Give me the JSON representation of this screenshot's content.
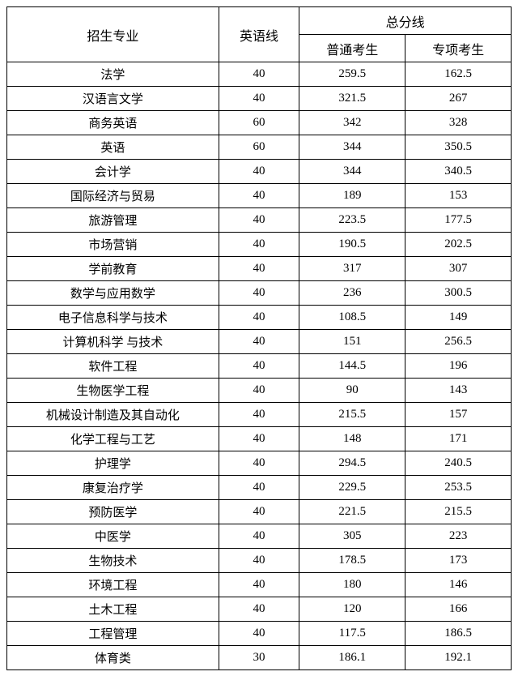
{
  "table": {
    "headers": {
      "major": "招生专业",
      "english": "英语线",
      "total": "总分线",
      "normal": "普通考生",
      "special": "专项考生"
    },
    "rows": [
      {
        "major": "法学",
        "english": "40",
        "normal": "259.5",
        "special": "162.5"
      },
      {
        "major": "汉语言文学",
        "english": "40",
        "normal": "321.5",
        "special": "267"
      },
      {
        "major": "商务英语",
        "english": "60",
        "normal": "342",
        "special": "328"
      },
      {
        "major": "英语",
        "english": "60",
        "normal": "344",
        "special": "350.5"
      },
      {
        "major": "会计学",
        "english": "40",
        "normal": "344",
        "special": "340.5"
      },
      {
        "major": "国际经济与贸易",
        "english": "40",
        "normal": "189",
        "special": "153"
      },
      {
        "major": "旅游管理",
        "english": "40",
        "normal": "223.5",
        "special": "177.5"
      },
      {
        "major": "市场营销",
        "english": "40",
        "normal": "190.5",
        "special": "202.5"
      },
      {
        "major": "学前教育",
        "english": "40",
        "normal": "317",
        "special": "307"
      },
      {
        "major": "数学与应用数学",
        "english": "40",
        "normal": "236",
        "special": "300.5"
      },
      {
        "major": "电子信息科学与技术",
        "english": "40",
        "normal": "108.5",
        "special": "149"
      },
      {
        "major": "计算机科学 与技术",
        "english": "40",
        "normal": "151",
        "special": "256.5"
      },
      {
        "major": "软件工程",
        "english": "40",
        "normal": "144.5",
        "special": "196"
      },
      {
        "major": "生物医学工程",
        "english": "40",
        "normal": "90",
        "special": "143"
      },
      {
        "major": "机械设计制造及其自动化",
        "english": "40",
        "normal": "215.5",
        "special": "157"
      },
      {
        "major": "化学工程与工艺",
        "english": "40",
        "normal": "148",
        "special": "171"
      },
      {
        "major": "护理学",
        "english": "40",
        "normal": "294.5",
        "special": "240.5"
      },
      {
        "major": "康复治疗学",
        "english": "40",
        "normal": "229.5",
        "special": "253.5"
      },
      {
        "major": "预防医学",
        "english": "40",
        "normal": "221.5",
        "special": "215.5"
      },
      {
        "major": "中医学",
        "english": "40",
        "normal": "305",
        "special": "223"
      },
      {
        "major": "生物技术",
        "english": "40",
        "normal": "178.5",
        "special": "173"
      },
      {
        "major": "环境工程",
        "english": "40",
        "normal": "180",
        "special": "146"
      },
      {
        "major": "土木工程",
        "english": "40",
        "normal": "120",
        "special": "166"
      },
      {
        "major": "工程管理",
        "english": "40",
        "normal": "117.5",
        "special": "186.5"
      },
      {
        "major": "体育类",
        "english": "30",
        "normal": "186.1",
        "special": "192.1"
      }
    ],
    "style": {
      "border_color": "#000000",
      "background_color": "#ffffff",
      "text_color": "#000000",
      "header_fontsize": 16,
      "cell_fontsize": 15
    }
  }
}
